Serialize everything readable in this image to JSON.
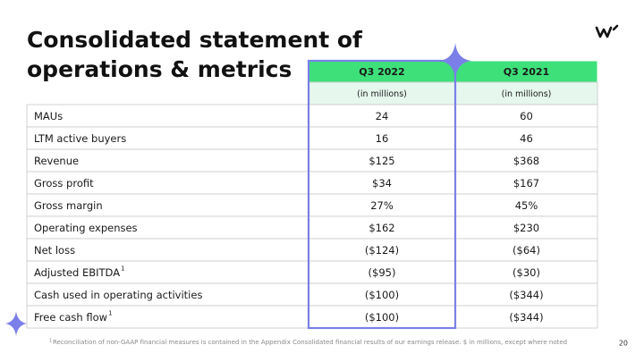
{
  "header": {
    "title_lines": [
      "Consolidated statement of",
      "operations & metrics"
    ]
  },
  "table": {
    "columns": [
      "Q3 2022",
      "Q3 2021"
    ],
    "units": [
      "(in millions)",
      "(in millions)"
    ],
    "rows": [
      {
        "label": "MAUs",
        "values": [
          "24",
          "60"
        ]
      },
      {
        "label": "LTM active buyers",
        "values": [
          "16",
          "46"
        ]
      },
      {
        "label": "Revenue",
        "values": [
          "$125",
          "$368"
        ]
      },
      {
        "label": "Gross profit",
        "values": [
          "$34",
          "$167"
        ]
      },
      {
        "label": "Gross margin",
        "values": [
          "27%",
          "45%"
        ]
      },
      {
        "label": "Operating expenses",
        "values": [
          "$162",
          "$230"
        ]
      },
      {
        "label": "Net loss",
        "values": [
          "($124)",
          "($64)"
        ]
      },
      {
        "label": "Adjusted EBITDA",
        "note": "1",
        "values": [
          "($95)",
          "($30)"
        ]
      },
      {
        "label": "Cash used in operating activities",
        "values": [
          "($100)",
          "($344)"
        ]
      },
      {
        "label": "Free cash flow",
        "note": "1",
        "values": [
          "($100)",
          "($344)"
        ]
      }
    ]
  },
  "footnote": {
    "marker": "1",
    "text": "Reconciliation of non-GAAP financial measures is contained in the Appendix Consolidated financial results of our earnings release. $ in millions, except where noted"
  },
  "page_number": "20"
}
